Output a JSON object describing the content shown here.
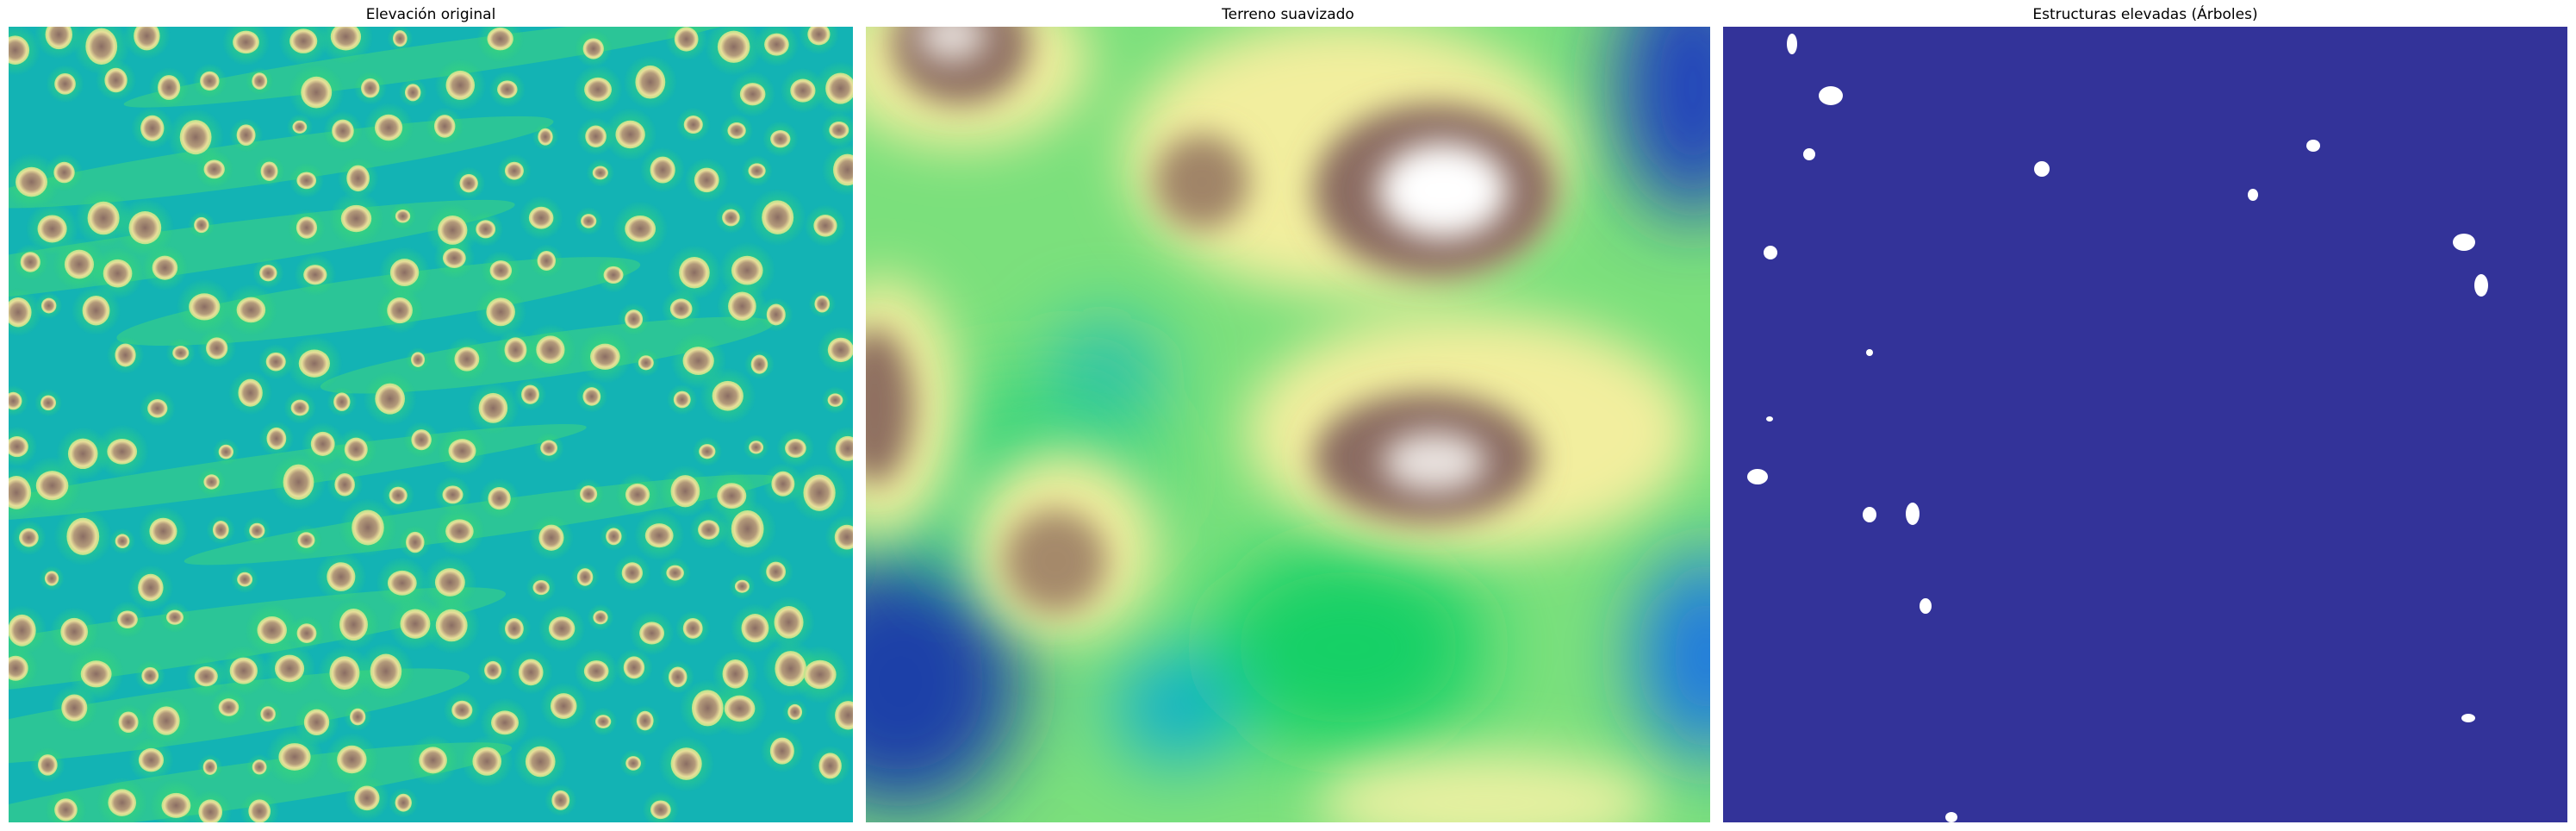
{
  "panels": [
    {
      "title": "Elevación original",
      "kind": "raw-elevation-raster",
      "colormap": "terrain"
    },
    {
      "title": "Terreno suavizado",
      "kind": "smoothed-terrain-raster",
      "colormap": "terrain"
    },
    {
      "title": "Estructuras elevadas (Árboles)",
      "kind": "binary-tree-mask"
    }
  ],
  "colors": {
    "background": "#ffffff",
    "terrain_low": "#1e90ff",
    "terrain_water": "#00a6c4",
    "terrain_grass": "#2fd36a",
    "terrain_sand": "#f4f0a0",
    "terrain_rock": "#8a6d63",
    "terrain_peak": "#ffffff",
    "mask_background": "#333399",
    "mask_foreground": "#ffffff"
  }
}
